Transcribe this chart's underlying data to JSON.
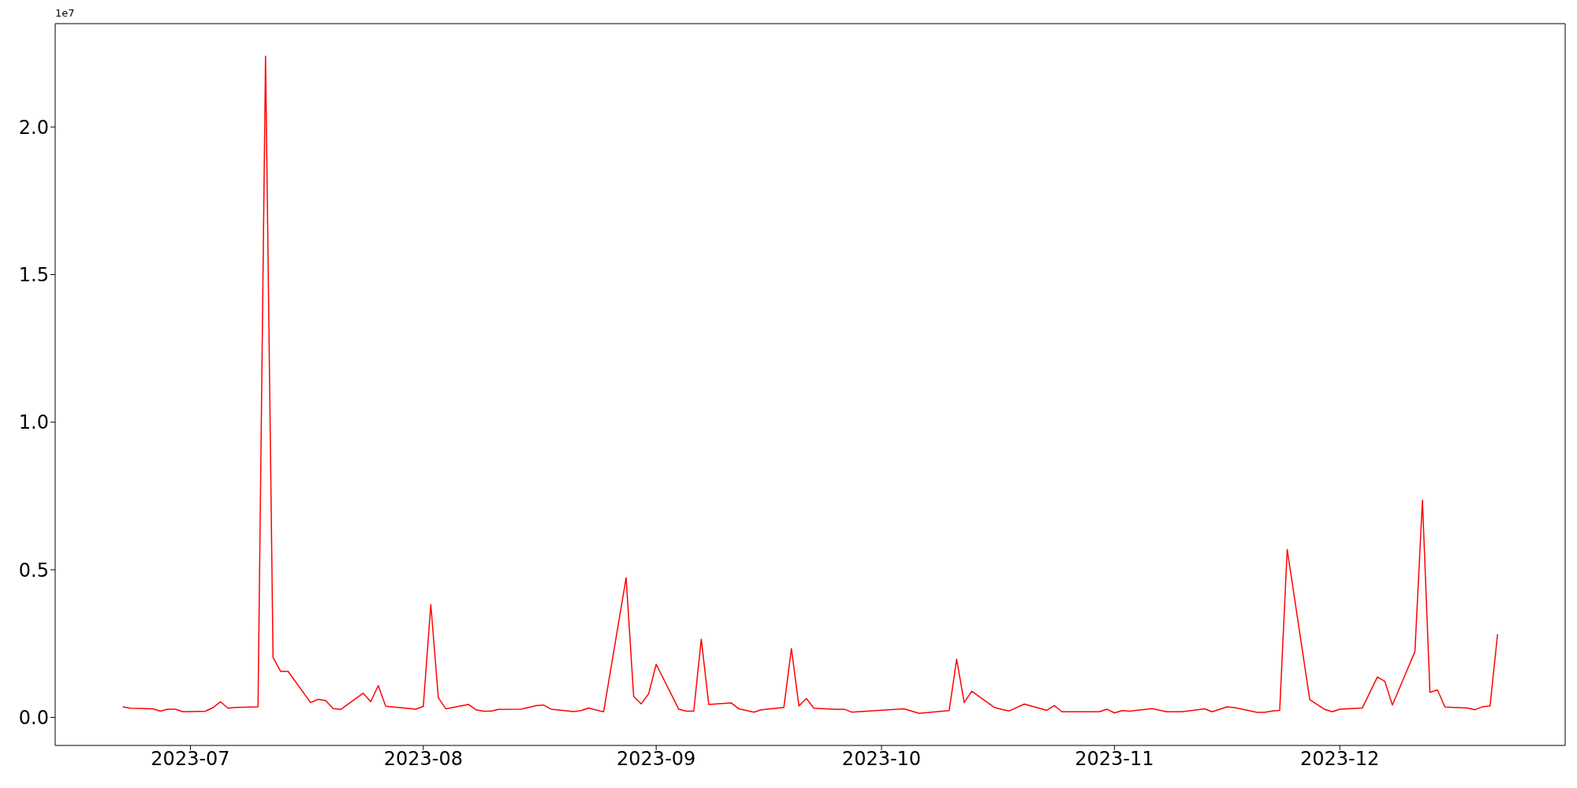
{
  "chart_data": {
    "type": "line",
    "annotations": [
      "1e7"
    ],
    "x": [
      "2023-06-22",
      "2023-06-23",
      "2023-06-26",
      "2023-06-27",
      "2023-06-28",
      "2023-06-29",
      "2023-06-30",
      "2023-07-03",
      "2023-07-04",
      "2023-07-05",
      "2023-07-06",
      "2023-07-07",
      "2023-07-10",
      "2023-07-11",
      "2023-07-12",
      "2023-07-13",
      "2023-07-14",
      "2023-07-17",
      "2023-07-18",
      "2023-07-19",
      "2023-07-20",
      "2023-07-21",
      "2023-07-24",
      "2023-07-25",
      "2023-07-26",
      "2023-07-27",
      "2023-07-31",
      "2023-08-01",
      "2023-08-02",
      "2023-08-03",
      "2023-08-04",
      "2023-08-07",
      "2023-08-08",
      "2023-08-09",
      "2023-08-10",
      "2023-08-11",
      "2023-08-14",
      "2023-08-16",
      "2023-08-17",
      "2023-08-18",
      "2023-08-21",
      "2023-08-22",
      "2023-08-23",
      "2023-08-25",
      "2023-08-28",
      "2023-08-29",
      "2023-08-30",
      "2023-08-31",
      "2023-09-01",
      "2023-09-04",
      "2023-09-05",
      "2023-09-06",
      "2023-09-07",
      "2023-09-08",
      "2023-09-11",
      "2023-09-12",
      "2023-09-14",
      "2023-09-15",
      "2023-09-18",
      "2023-09-19",
      "2023-09-20",
      "2023-09-21",
      "2023-09-22",
      "2023-09-25",
      "2023-09-26",
      "2023-09-27",
      "2023-10-04",
      "2023-10-06",
      "2023-10-10",
      "2023-10-11",
      "2023-10-12",
      "2023-10-13",
      "2023-10-16",
      "2023-10-17",
      "2023-10-18",
      "2023-10-20",
      "2023-10-23",
      "2023-10-24",
      "2023-10-25",
      "2023-10-30",
      "2023-10-31",
      "2023-11-01",
      "2023-11-02",
      "2023-11-03",
      "2023-11-06",
      "2023-11-08",
      "2023-11-10",
      "2023-11-13",
      "2023-11-14",
      "2023-11-16",
      "2023-11-17",
      "2023-11-20",
      "2023-11-21",
      "2023-11-22",
      "2023-11-23",
      "2023-11-24",
      "2023-11-27",
      "2023-11-29",
      "2023-11-30",
      "2023-12-01",
      "2023-12-04",
      "2023-12-06",
      "2023-12-07",
      "2023-12-08",
      "2023-12-11",
      "2023-12-12",
      "2023-12-13",
      "2023-12-14",
      "2023-12-15",
      "2023-12-18",
      "2023-12-19",
      "2023-12-20",
      "2023-12-21",
      "2023-12-22"
    ],
    "series": [
      {
        "color": "#ff0000",
        "values": [
          0.036,
          0.031,
          0.029,
          0.021,
          0.028,
          0.028,
          0.019,
          0.021,
          0.033,
          0.053,
          0.031,
          0.034,
          0.036,
          2.24,
          0.203,
          0.156,
          0.156,
          0.05,
          0.061,
          0.057,
          0.03,
          0.027,
          0.082,
          0.053,
          0.108,
          0.038,
          0.028,
          0.037,
          0.382,
          0.067,
          0.029,
          0.044,
          0.026,
          0.021,
          0.021,
          0.027,
          0.028,
          0.04,
          0.042,
          0.028,
          0.02,
          0.023,
          0.032,
          0.019,
          0.473,
          0.071,
          0.046,
          0.08,
          0.18,
          0.028,
          0.021,
          0.021,
          0.265,
          0.044,
          0.049,
          0.029,
          0.018,
          0.026,
          0.034,
          0.233,
          0.039,
          0.064,
          0.031,
          0.027,
          0.028,
          0.018,
          0.029,
          0.014,
          0.023,
          0.197,
          0.05,
          0.089,
          0.034,
          0.027,
          0.022,
          0.045,
          0.024,
          0.04,
          0.019,
          0.019,
          0.028,
          0.015,
          0.023,
          0.021,
          0.03,
          0.019,
          0.019,
          0.029,
          0.019,
          0.036,
          0.033,
          0.017,
          0.017,
          0.022,
          0.024,
          0.569,
          0.06,
          0.027,
          0.019,
          0.028,
          0.032,
          0.137,
          0.122,
          0.042,
          0.223,
          0.736,
          0.085,
          0.093,
          0.035,
          0.032,
          0.026,
          0.036,
          0.039,
          0.282
        ]
      }
    ],
    "xlim": [
      "2023-06-13",
      "2023-12-31"
    ],
    "xticks": [
      {
        "value": "2023-07-01",
        "label": "2023-07"
      },
      {
        "value": "2023-08-01",
        "label": "2023-08"
      },
      {
        "value": "2023-09-01",
        "label": "2023-09"
      },
      {
        "value": "2023-10-01",
        "label": "2023-10"
      },
      {
        "value": "2023-11-01",
        "label": "2023-11"
      },
      {
        "value": "2023-12-01",
        "label": "2023-12"
      }
    ],
    "ylim": [
      -0.095,
      2.35
    ],
    "yticks": [
      {
        "value": 0,
        "label": "0.0"
      },
      {
        "value": 0.5,
        "label": "0.5"
      },
      {
        "value": 1,
        "label": "1.0"
      },
      {
        "value": 1.5,
        "label": "1.5"
      },
      {
        "value": 2,
        "label": "2.0"
      }
    ],
    "grid": false,
    "marker": "none",
    "line_style": "solid"
  }
}
